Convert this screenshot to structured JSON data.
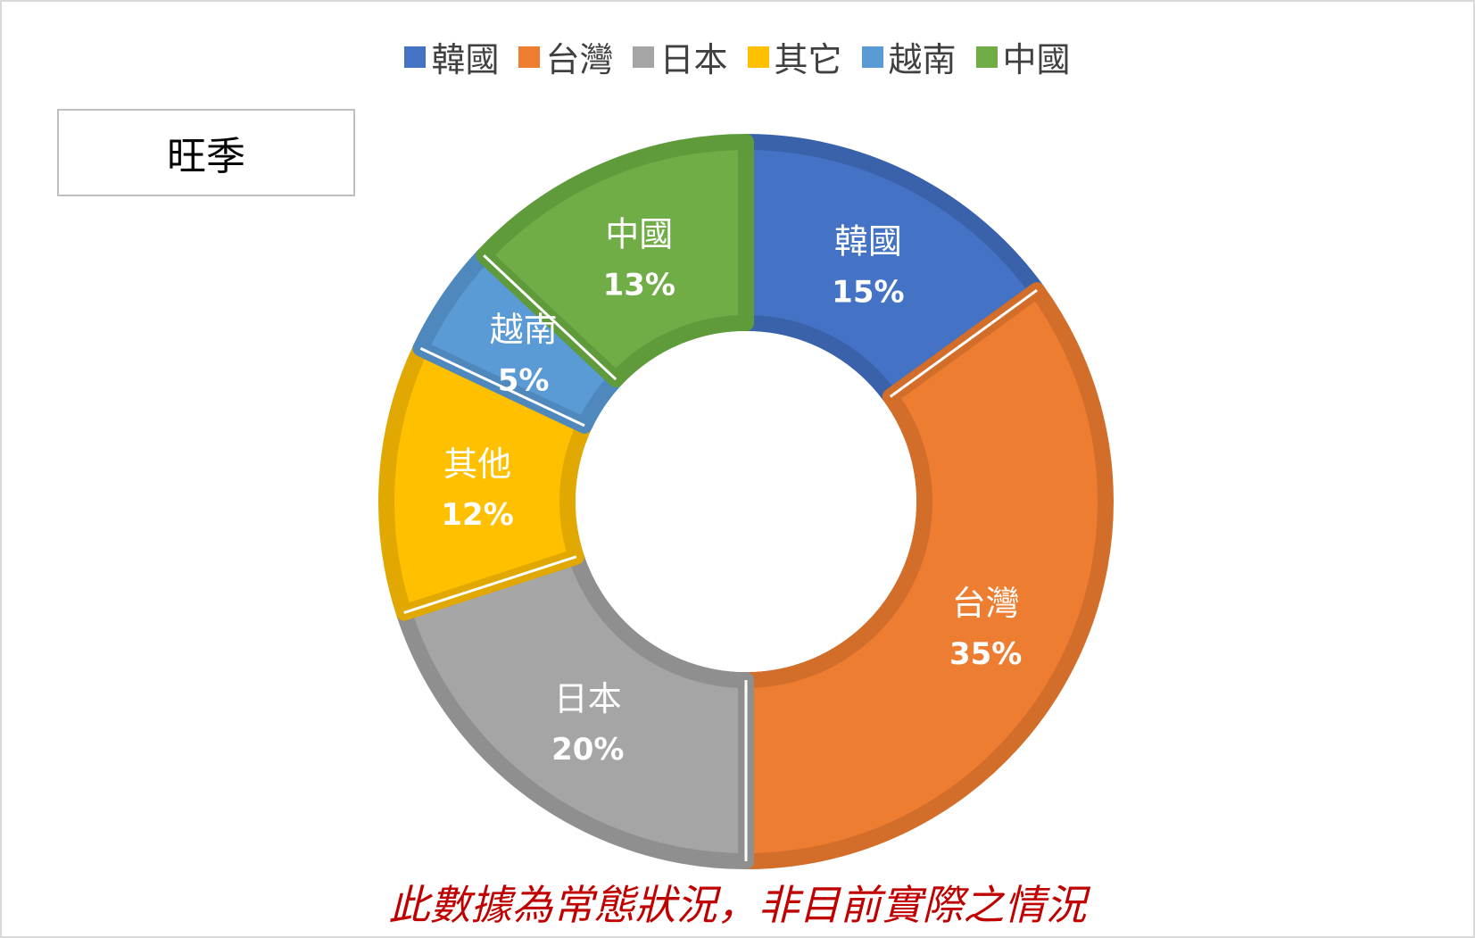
{
  "chart_data": {
    "type": "pie",
    "variant": "donut",
    "label": "旺季",
    "legend": {
      "position": "top",
      "entries": [
        {
          "name": "韓國",
          "color": "#4472c4"
        },
        {
          "name": "台灣",
          "color": "#ed7d31"
        },
        {
          "name": "日本",
          "color": "#a5a5a5"
        },
        {
          "name": "其它",
          "color": "#ffc000"
        },
        {
          "name": "越南",
          "color": "#5b9bd5"
        },
        {
          "name": "中國",
          "color": "#70ad47"
        }
      ]
    },
    "slices": [
      {
        "name": "韓國",
        "value": 15,
        "label": "15%",
        "color": "#4472c4",
        "edge": "#3a62ab"
      },
      {
        "name": "台灣",
        "value": 35,
        "label": "35%",
        "color": "#ed7d31",
        "edge": "#d36d2a"
      },
      {
        "name": "日本",
        "value": 20,
        "label": "20%",
        "color": "#a5a5a5",
        "edge": "#8f8f8f"
      },
      {
        "name": "其他",
        "value": 12,
        "label": "12%",
        "color": "#ffc000",
        "edge": "#e0a800"
      },
      {
        "name": "越南",
        "value": 5,
        "label": "5%",
        "color": "#5b9bd5",
        "edge": "#4f88bd"
      },
      {
        "name": "中國",
        "value": 13,
        "label": "13%",
        "color": "#70ad47",
        "edge": "#5f9a3b"
      }
    ]
  },
  "footnote": "此數據為常態狀況，非目前實際之情況"
}
